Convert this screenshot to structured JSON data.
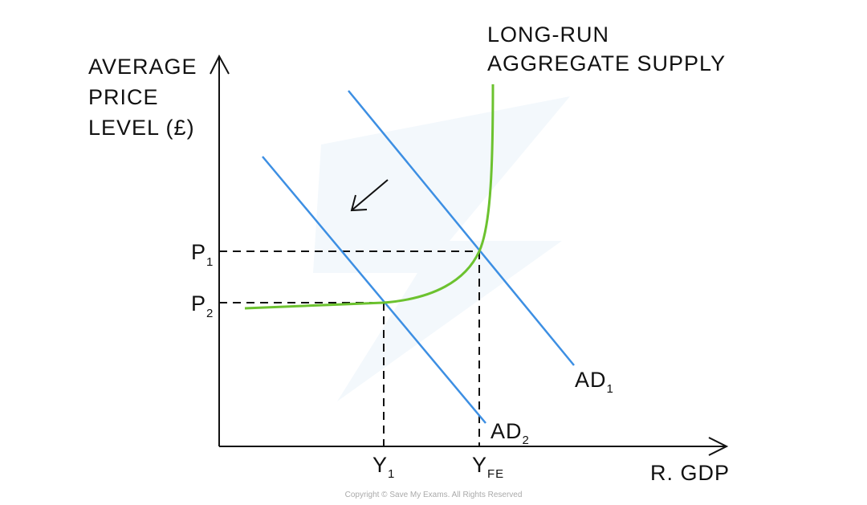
{
  "y_axis_label": [
    "AVERAGE",
    "PRICE",
    "LEVEL (£)"
  ],
  "x_axis_label": "R. GDP",
  "curve_label": [
    "LONG-RUN",
    "AGGREGATE SUPPLY"
  ],
  "price_labels": [
    {
      "main": "P",
      "sub": "1"
    },
    {
      "main": "P",
      "sub": "2"
    }
  ],
  "output_labels": [
    {
      "main": "Y",
      "sub": "1"
    },
    {
      "main": "Y",
      "sub": "FE"
    }
  ],
  "demand_labels": [
    {
      "main": "AD",
      "sub": "1"
    },
    {
      "main": "AD",
      "sub": "2"
    }
  ],
  "copyright": "Copyright © Save My Exams. All Rights Reserved",
  "colors": {
    "aggregate_demand": "#3d8fe3",
    "lras": "#6cc22f",
    "axes": "#111111"
  },
  "shift_arrow": "down-left"
}
